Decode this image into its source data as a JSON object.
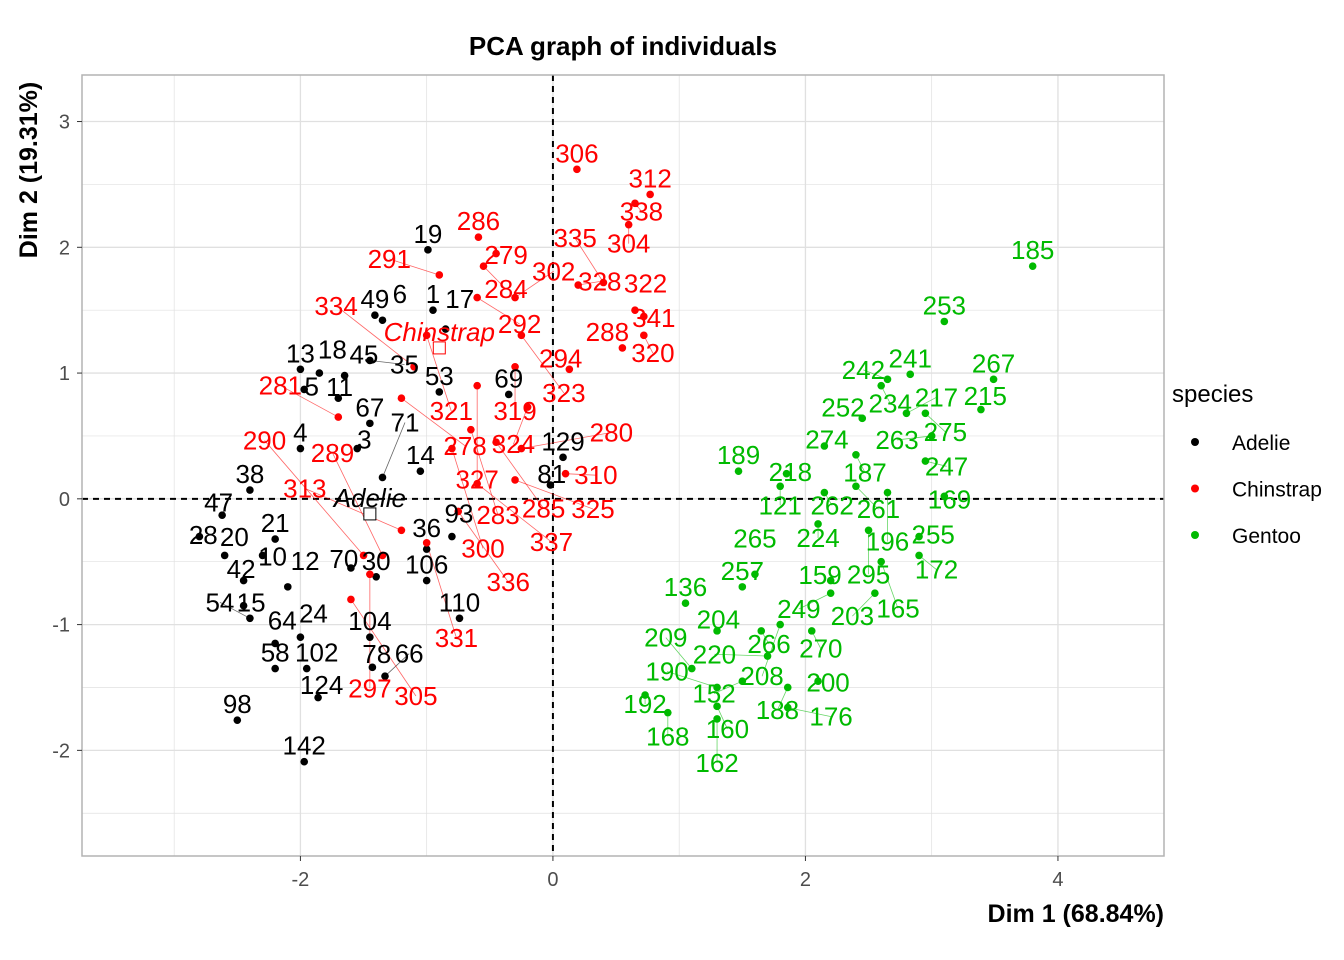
{
  "chart_data": {
    "type": "scatter",
    "title": "PCA graph of individuals",
    "xlabel": "Dim 1 (68.84%)",
    "ylabel": "Dim 2 (19.31%)",
    "xlim": [
      -3.73,
      4.84
    ],
    "ylim": [
      -2.84,
      3.37
    ],
    "x_ticks": [
      -2,
      0,
      2,
      4
    ],
    "y_ticks": [
      -2,
      -1,
      0,
      1,
      2,
      3
    ],
    "grid": true,
    "reference_lines": {
      "x": 0,
      "y": 0,
      "style": "dashed"
    },
    "legend": {
      "title": "species",
      "placement": "right"
    },
    "series": [
      {
        "name": "Adelie",
        "color": "#000000",
        "mean_label": "Adelie",
        "mean": [
          -1.45,
          -0.12
        ],
        "points": [
          [
            "19",
            -0.99,
            1.98
          ],
          [
            "49",
            -1.41,
            1.46
          ],
          [
            "6",
            -1.35,
            1.42
          ],
          [
            "1",
            -0.95,
            1.5
          ],
          [
            "17",
            -0.85,
            1.35
          ],
          [
            "13",
            -2.0,
            1.03
          ],
          [
            "18",
            -1.85,
            1.0
          ],
          [
            "45",
            -1.65,
            0.98
          ],
          [
            "5",
            -1.97,
            0.87
          ],
          [
            "35",
            -1.45,
            1.1
          ],
          [
            "38",
            -2.4,
            0.07
          ],
          [
            "47",
            -2.62,
            -0.13
          ],
          [
            "28",
            -2.8,
            -0.3
          ],
          [
            "21",
            -2.2,
            -0.32
          ],
          [
            "20",
            -2.6,
            -0.45
          ],
          [
            "10",
            -2.3,
            -0.45
          ],
          [
            "42",
            -2.45,
            -0.65
          ],
          [
            "12",
            -2.1,
            -0.7
          ],
          [
            "15",
            -2.45,
            -0.85
          ],
          [
            "54",
            -2.4,
            -0.95
          ],
          [
            "64",
            -2.2,
            -1.15
          ],
          [
            "58",
            -2.2,
            -1.35
          ],
          [
            "102",
            -1.95,
            -1.35
          ],
          [
            "24",
            -2.0,
            -1.1
          ],
          [
            "104",
            -1.45,
            -1.1
          ],
          [
            "110",
            -0.74,
            -0.95
          ],
          [
            "106",
            -1.0,
            -0.65
          ],
          [
            "78",
            -1.43,
            -1.34
          ],
          [
            "66",
            -1.33,
            -1.41
          ],
          [
            "124",
            -1.86,
            -1.58
          ],
          [
            "98",
            -2.5,
            -1.76
          ],
          [
            "142",
            -1.97,
            -2.09
          ],
          [
            "129",
            0.08,
            0.33
          ],
          [
            "81",
            -0.02,
            0.11
          ],
          [
            "69",
            -0.35,
            0.83
          ],
          [
            "53",
            -0.9,
            0.85
          ],
          [
            "67",
            -1.45,
            0.6
          ],
          [
            "4",
            -2.0,
            0.4
          ],
          [
            "3",
            -1.55,
            0.4
          ],
          [
            "14",
            -1.05,
            0.22
          ],
          [
            "71",
            -1.35,
            0.17
          ],
          [
            "36",
            -1.0,
            -0.4
          ],
          [
            "93",
            -0.8,
            -0.3
          ],
          [
            "30",
            -1.4,
            -0.62
          ],
          [
            "70",
            -1.6,
            -0.55
          ],
          [
            "11",
            -1.7,
            0.8
          ]
        ]
      },
      {
        "name": "Chinstrap",
        "color": "#ff0000",
        "mean_label": "Chinstrap",
        "mean": [
          -0.9,
          1.2
        ],
        "points": [
          [
            "306",
            0.19,
            2.62
          ],
          [
            "312",
            0.77,
            2.42
          ],
          [
            "338",
            0.65,
            2.35
          ],
          [
            "304",
            0.6,
            2.18
          ],
          [
            "286",
            -0.59,
            2.08
          ],
          [
            "279",
            -0.45,
            1.95
          ],
          [
            "284",
            -0.55,
            1.85
          ],
          [
            "291",
            -0.9,
            1.78
          ],
          [
            "292",
            -0.6,
            1.6
          ],
          [
            "302",
            -0.3,
            1.6
          ],
          [
            "310",
            0.1,
            0.2
          ],
          [
            "328",
            0.2,
            1.7
          ],
          [
            "335",
            0.4,
            1.72
          ],
          [
            "322",
            0.65,
            1.5
          ],
          [
            "341",
            0.72,
            1.45
          ],
          [
            "320",
            0.72,
            1.3
          ],
          [
            "288",
            0.55,
            1.2
          ],
          [
            "294",
            0.13,
            1.03
          ],
          [
            "323",
            -0.25,
            1.3
          ],
          [
            "321",
            -1.0,
            1.3
          ],
          [
            "334",
            -1.1,
            1.05
          ],
          [
            "319",
            -0.3,
            1.05
          ],
          [
            "324",
            -0.2,
            0.73
          ],
          [
            "327",
            -0.6,
            0.9
          ],
          [
            "278",
            -1.2,
            0.8
          ],
          [
            "281",
            -1.7,
            0.65
          ],
          [
            "283",
            -0.65,
            0.55
          ],
          [
            "285",
            -0.45,
            0.45
          ],
          [
            "280",
            -0.25,
            0.4
          ],
          [
            "300",
            -0.8,
            0.4
          ],
          [
            "325",
            -0.3,
            0.15
          ],
          [
            "337",
            -0.6,
            0.12
          ],
          [
            "336",
            -0.75,
            -0.1
          ],
          [
            "313",
            -1.2,
            -0.25
          ],
          [
            "331",
            -1.0,
            -0.35
          ],
          [
            "290",
            -1.5,
            -0.45
          ],
          [
            "297",
            -1.45,
            -0.6
          ],
          [
            "305",
            -1.6,
            -0.8
          ],
          [
            "289",
            -1.35,
            -0.45
          ]
        ]
      },
      {
        "name": "Gentoo",
        "color": "#00ba00",
        "points": [
          [
            "185",
            3.8,
            1.85
          ],
          [
            "253",
            3.1,
            1.41
          ],
          [
            "267",
            3.49,
            0.95
          ],
          [
            "215",
            3.39,
            0.71
          ],
          [
            "241",
            2.83,
            0.99
          ],
          [
            "242",
            2.65,
            0.95
          ],
          [
            "234",
            2.6,
            0.9
          ],
          [
            "252",
            2.45,
            0.64
          ],
          [
            "217",
            2.8,
            0.68
          ],
          [
            "275",
            2.95,
            0.68
          ],
          [
            "263",
            3.0,
            0.5
          ],
          [
            "247",
            2.95,
            0.3
          ],
          [
            "169",
            3.1,
            0.02
          ],
          [
            "274",
            2.15,
            0.42
          ],
          [
            "187",
            2.4,
            0.35
          ],
          [
            "189",
            1.47,
            0.22
          ],
          [
            "218",
            1.85,
            0.2
          ],
          [
            "121",
            1.8,
            0.1
          ],
          [
            "262",
            2.15,
            0.05
          ],
          [
            "261",
            2.4,
            0.1
          ],
          [
            "196",
            2.65,
            0.05
          ],
          [
            "224",
            2.1,
            -0.2
          ],
          [
            "295",
            2.5,
            -0.25
          ],
          [
            "255",
            2.9,
            -0.3
          ],
          [
            "172",
            2.9,
            -0.45
          ],
          [
            "165",
            2.6,
            -0.5
          ],
          [
            "159",
            2.2,
            -0.65
          ],
          [
            "203",
            2.55,
            -0.75
          ],
          [
            "249",
            2.2,
            -0.75
          ],
          [
            "257",
            1.5,
            -0.7
          ],
          [
            "265",
            1.6,
            -0.6
          ],
          [
            "136",
            1.05,
            -0.83
          ],
          [
            "204",
            1.3,
            -1.05
          ],
          [
            "266",
            1.65,
            -1.05
          ],
          [
            "270",
            2.05,
            -1.05
          ],
          [
            "208",
            1.8,
            -1.0
          ],
          [
            "220",
            1.7,
            -1.25
          ],
          [
            "200",
            2.1,
            -1.45
          ],
          [
            "188",
            1.86,
            -1.5
          ],
          [
            "152",
            1.5,
            -1.45
          ],
          [
            "190",
            1.3,
            -1.5
          ],
          [
            "192",
            0.73,
            -1.56
          ],
          [
            "160",
            1.3,
            -1.65
          ],
          [
            "168",
            0.91,
            -1.7
          ],
          [
            "162",
            1.3,
            -1.75
          ],
          [
            "176",
            1.86,
            -1.66
          ],
          [
            "209",
            1.1,
            -1.35
          ]
        ]
      }
    ]
  }
}
